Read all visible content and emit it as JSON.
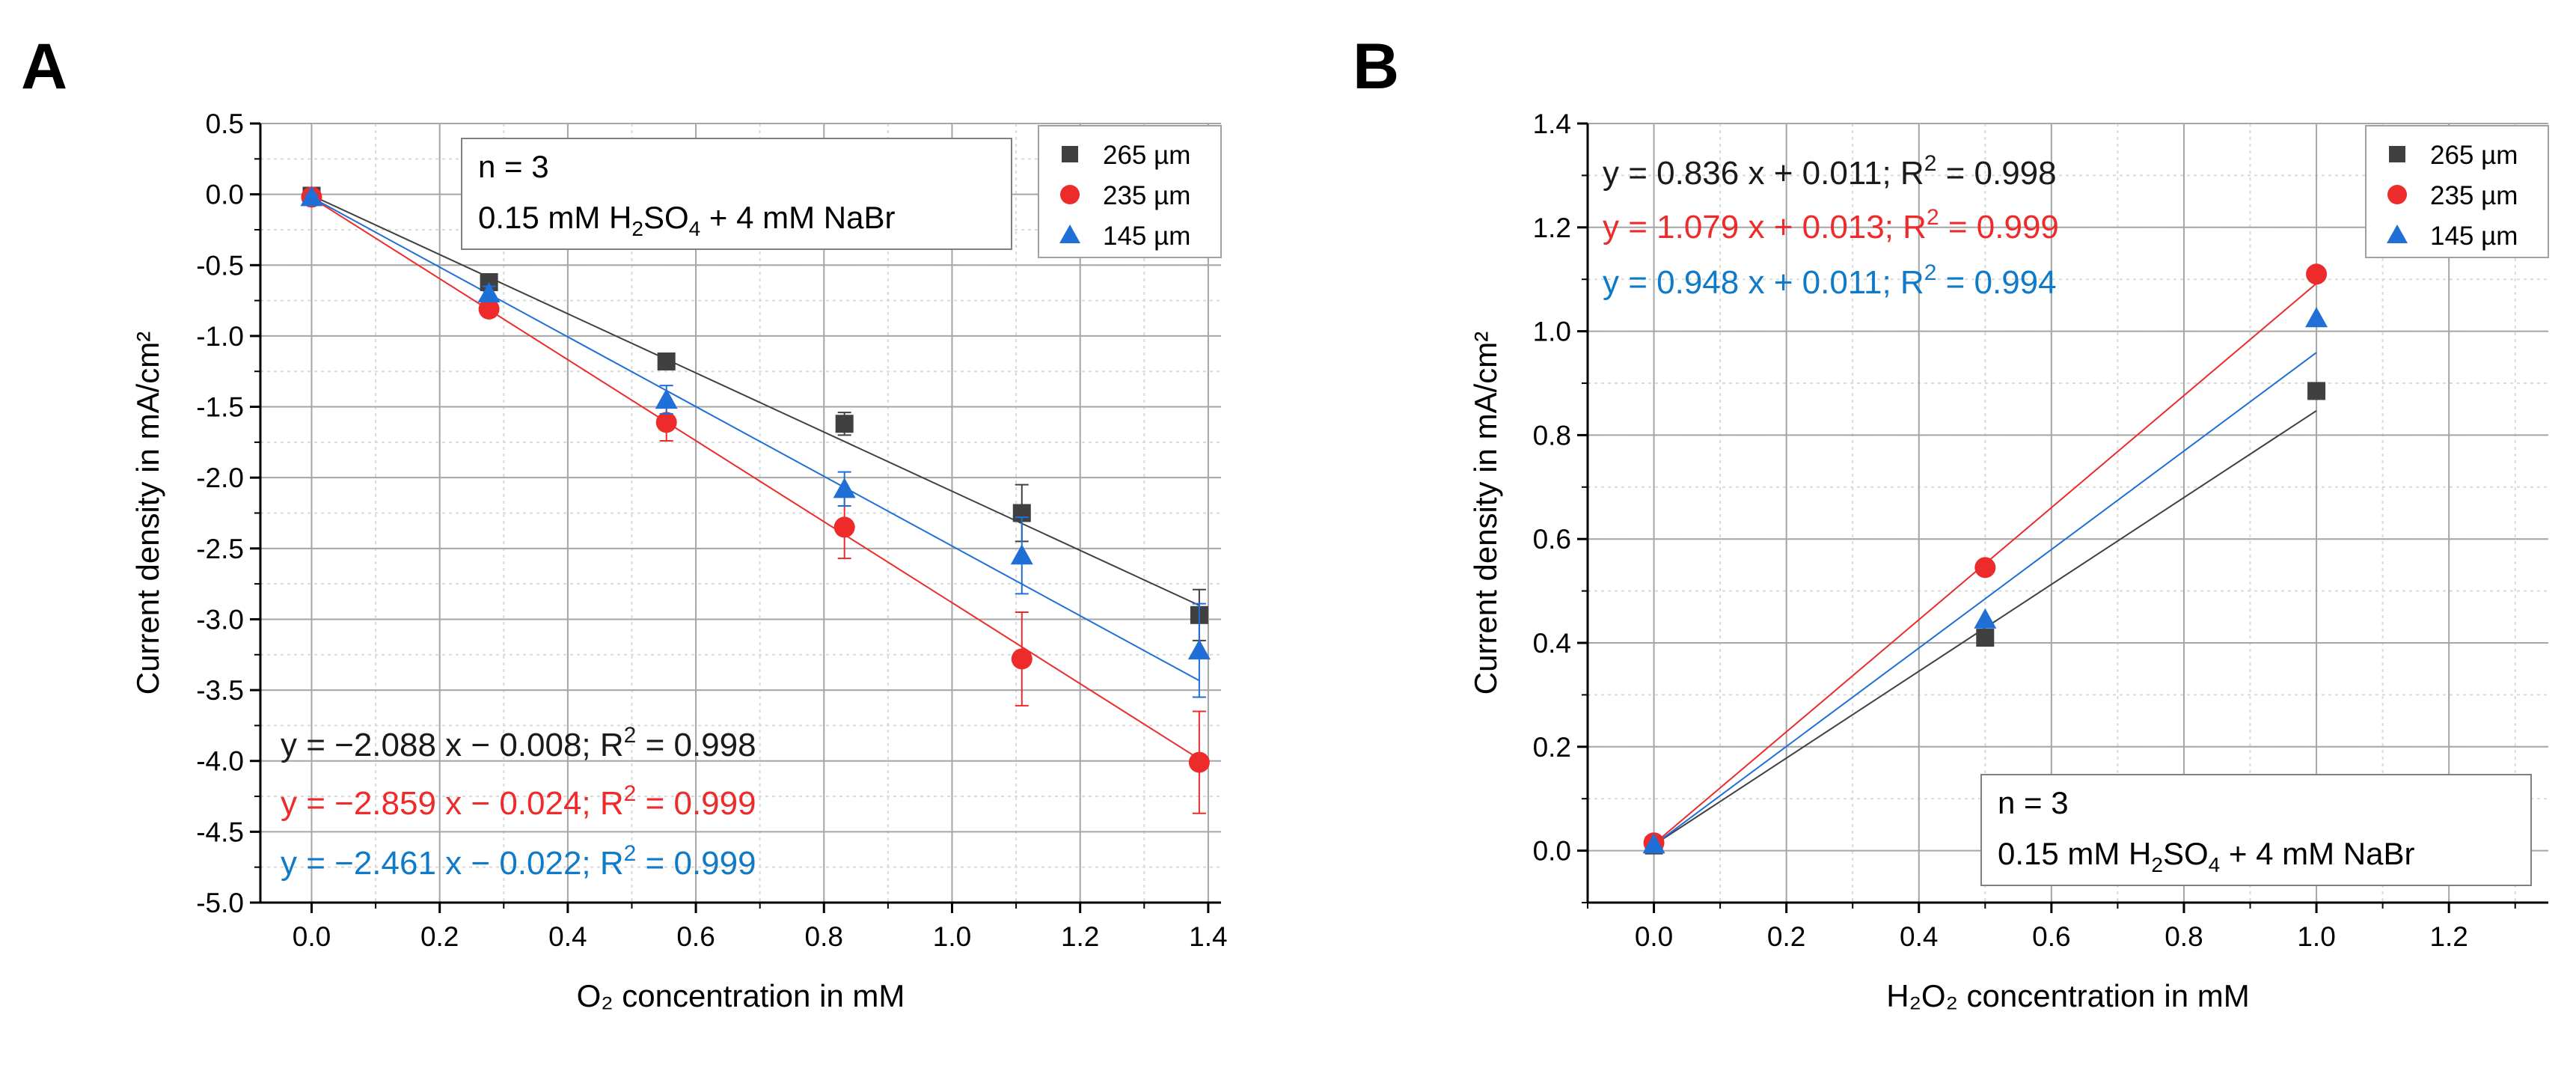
{
  "chart_data": [
    {
      "type": "scatter",
      "panel": "A",
      "xlabel": "O₂ concentration in mM",
      "ylabel": "Current density in mA/cm²",
      "xlim": [
        -0.08,
        1.42
      ],
      "ylim": [
        -5.0,
        0.5
      ],
      "x_ticks": [
        "0.0",
        "0.2",
        "0.4",
        "0.6",
        "0.8",
        "1.0",
        "1.2",
        "1.4"
      ],
      "y_ticks": [
        "0.5",
        "0.0",
        "-0.5",
        "-1.0",
        "-1.5",
        "-2.0",
        "-2.5",
        "-3.0",
        "-3.5",
        "-4.0",
        "-4.5",
        "-5.0"
      ],
      "grid": true,
      "legend_position": "top-right",
      "annotation": {
        "line1": "n = 3",
        "line2_a": "0.15 mM H",
        "line2_sub1": "2",
        "line2_b": "SO",
        "line2_sub2": "4",
        "line2_c": " + 4 mM NaBr"
      },
      "series": [
        {
          "name": "265 µm",
          "color": "#404040",
          "marker": "square",
          "x": [
            0.0,
            0.277,
            0.554,
            0.832,
            1.109,
            1.386
          ],
          "y": [
            -0.01,
            -0.62,
            -1.18,
            -1.62,
            -2.25,
            -2.97
          ],
          "err": [
            0.02,
            0.04,
            0.05,
            0.08,
            0.2,
            0.18
          ],
          "fit": {
            "slope": -2.088,
            "intercept": -0.008
          },
          "equation": {
            "pre": "y = −2.088 x − 0.008; R",
            "sup": "2",
            "post": " = 0.998"
          }
        },
        {
          "name": "235 µm",
          "color": "#ee2b2b",
          "marker": "circle",
          "x": [
            0.0,
            0.277,
            0.554,
            0.832,
            1.109,
            1.386
          ],
          "y": [
            -0.02,
            -0.81,
            -1.61,
            -2.35,
            -3.28,
            -4.01
          ],
          "err": [
            0.02,
            0.05,
            0.13,
            0.22,
            0.33,
            0.36
          ],
          "fit": {
            "slope": -2.859,
            "intercept": -0.024
          },
          "equation": {
            "pre": "y = −2.859 x − 0.024; R",
            "sup": "2",
            "post": " = 0.999"
          }
        },
        {
          "name": "145 µm",
          "color": "#1f6fd6",
          "marker": "triangle",
          "x": [
            0.0,
            0.277,
            0.554,
            0.832,
            1.109,
            1.386
          ],
          "y": [
            -0.02,
            -0.7,
            -1.45,
            -2.08,
            -2.55,
            -3.22
          ],
          "err": [
            0.02,
            0.05,
            0.1,
            0.12,
            0.27,
            0.33
          ],
          "fit": {
            "slope": -2.461,
            "intercept": -0.022
          },
          "equation": {
            "pre": "y = −2.461 x − 0.022; R",
            "sup": "2",
            "post": " = 0.999"
          },
          "equation_color": "#0f7ac8"
        }
      ]
    },
    {
      "type": "scatter",
      "panel": "B",
      "xlabel": "H₂O₂ concentration in mM",
      "ylabel": "Current density in mA/cm²",
      "xlim": [
        -0.1,
        1.35
      ],
      "ylim": [
        -0.1,
        1.4
      ],
      "x_ticks": [
        "0.0",
        "0.2",
        "0.4",
        "0.6",
        "0.8",
        "1.0",
        "1.2"
      ],
      "y_ticks": [
        "1.4",
        "1.2",
        "1.0",
        "0.8",
        "0.6",
        "0.4",
        "0.2",
        "0.0"
      ],
      "grid": true,
      "legend_position": "top-right",
      "annotation": {
        "line1": "n = 3",
        "line2_a": "0.15 mM H",
        "line2_sub1": "2",
        "line2_b": "SO",
        "line2_sub2": "4",
        "line2_c": " + 4 mM NaBr"
      },
      "series": [
        {
          "name": "265 µm",
          "color": "#404040",
          "marker": "square",
          "x": [
            0.0,
            0.5,
            1.0
          ],
          "y": [
            0.01,
            0.41,
            0.885
          ],
          "err": [
            0,
            0,
            0
          ],
          "fit": {
            "slope": 0.836,
            "intercept": 0.011
          },
          "equation": {
            "pre": "y = 0.836 x + 0.011; R",
            "sup": "2",
            "post": " = 0.998"
          }
        },
        {
          "name": "235 µm",
          "color": "#ee2b2b",
          "marker": "circle",
          "x": [
            0.0,
            0.5,
            1.0
          ],
          "y": [
            0.015,
            0.545,
            1.11
          ],
          "err": [
            0,
            0,
            0
          ],
          "fit": {
            "slope": 1.079,
            "intercept": 0.013
          },
          "equation": {
            "pre": "y = 1.079 x + 0.013; R",
            "sup": "2",
            "post": " = 0.999"
          }
        },
        {
          "name": "145 µm",
          "color": "#1f6fd6",
          "marker": "triangle",
          "x": [
            0.0,
            0.5,
            1.0
          ],
          "y": [
            0.012,
            0.445,
            1.025
          ],
          "err": [
            0,
            0,
            0
          ],
          "fit": {
            "slope": 0.948,
            "intercept": 0.011
          },
          "equation": {
            "pre": "y = 0.948 x + 0.011; R",
            "sup": "2",
            "post": " = 0.994"
          },
          "equation_color": "#0f7ac8"
        }
      ]
    }
  ]
}
